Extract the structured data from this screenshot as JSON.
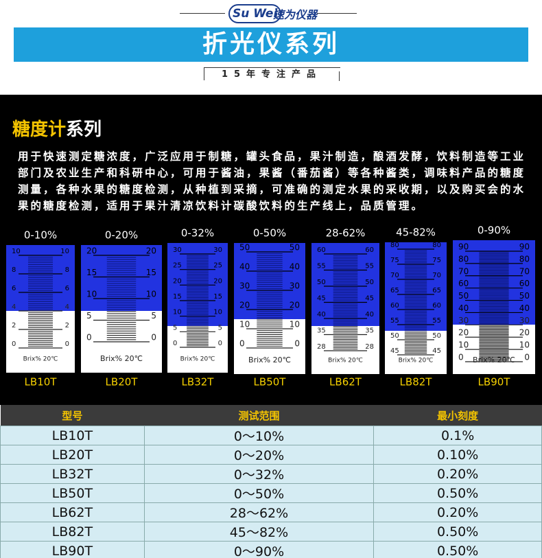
{
  "header": {
    "logo_en": "Su Wei",
    "logo_cn": "速为仪器",
    "banner": "折光仪系列",
    "tagline": "15年专注产品"
  },
  "section": {
    "title_highlight": "糖度计",
    "title_rest": "系列",
    "description": "用于快速测定糖浓度，广泛应用于制糖，罐头食品，果汁制造，酿酒发酵，饮料制造等工业部门及农业生产和科研中心，可用于酱油，果酱（番茄酱）等各种酱类，调味料产品的糖度测量，各种水果的糖度检测，从种植到采摘，可准确的测定水果的采收期，以及购买会的水果的糖度检测，适用于果汁清凉饮料计碳酸饮料的生产线上，品质管理。"
  },
  "scale_unit": "Brix% 20℃",
  "scales": [
    {
      "range": "0-10%",
      "model": "LB10T",
      "ticks": [
        10,
        8,
        6,
        4,
        2,
        0
      ]
    },
    {
      "range": "0-20%",
      "model": "LB20T",
      "ticks": [
        20,
        15,
        10,
        5,
        0
      ]
    },
    {
      "range": "0-32%",
      "model": "LB32T",
      "ticks": [
        30,
        25,
        20,
        15,
        10,
        5,
        0
      ]
    },
    {
      "range": "0-50%",
      "model": "LB50T",
      "ticks": [
        50,
        40,
        30,
        20,
        10,
        0
      ]
    },
    {
      "range": "28-62%",
      "model": "LB62T",
      "ticks": [
        60,
        55,
        50,
        45,
        40,
        35,
        28
      ]
    },
    {
      "range": "45-82%",
      "model": "LB82T",
      "ticks": [
        80,
        75,
        70,
        65,
        60,
        55,
        50,
        45
      ]
    },
    {
      "range": "0-90%",
      "model": "LB90T",
      "ticks": [
        90,
        80,
        70,
        60,
        50,
        40,
        30,
        20,
        10,
        0
      ]
    }
  ],
  "table": {
    "columns": [
      "型号",
      "测试范围",
      "最小刻度"
    ],
    "rows": [
      [
        "LB10T",
        "0～10%",
        "0.1%"
      ],
      [
        "LB20T",
        "0～20%",
        "0.10%"
      ],
      [
        "LB32T",
        "0～32%",
        "0.20%"
      ],
      [
        "LB50T",
        "0～50%",
        "0.50%"
      ],
      [
        "LB62T",
        "28～62%",
        "0.20%"
      ],
      [
        "LB82T",
        "45～82%",
        "0.50%"
      ],
      [
        "LB90T",
        "0～90%",
        "0.50%"
      ]
    ]
  }
}
